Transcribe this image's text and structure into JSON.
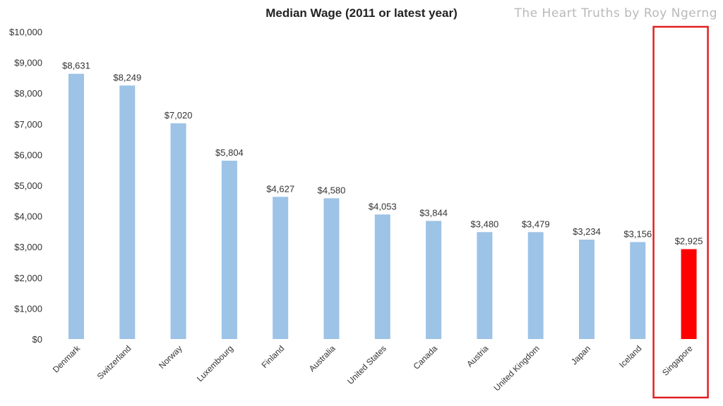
{
  "chart_data": {
    "type": "bar",
    "title": "Median Wage (2011 or latest year)",
    "watermark": "The Heart Truths by Roy Ngerng",
    "xlabel": "",
    "ylabel": "",
    "ylim": [
      0,
      10000
    ],
    "y_ticks": [
      "$0",
      "$1,000",
      "$2,000",
      "$3,000",
      "$4,000",
      "$5,000",
      "$6,000",
      "$7,000",
      "$8,000",
      "$9,000",
      "$10,000"
    ],
    "categories": [
      "Denmark",
      "Switzerland",
      "Norway",
      "Luxembourg",
      "Finland",
      "Australia",
      "United States",
      "Canada",
      "Austria",
      "United Kingdom",
      "Japan",
      "Iceland",
      "Singapore"
    ],
    "values": [
      8631,
      8249,
      7020,
      5804,
      4627,
      4580,
      4053,
      3844,
      3480,
      3479,
      3234,
      3156,
      2925
    ],
    "data_labels": [
      "$8,631",
      "$8,249",
      "$7,020",
      "$5,804",
      "$4,627",
      "$4,580",
      "$4,053",
      "$3,844",
      "$3,480",
      "$3,479",
      "$3,234",
      "$3,156",
      "$2,925"
    ],
    "highlighted_category": "Singapore",
    "grid": false,
    "legend": "none",
    "colors": {
      "bar": "#9dc3e6",
      "highlight": "#ff0000",
      "box": "#e02020",
      "text": "#333333"
    }
  }
}
